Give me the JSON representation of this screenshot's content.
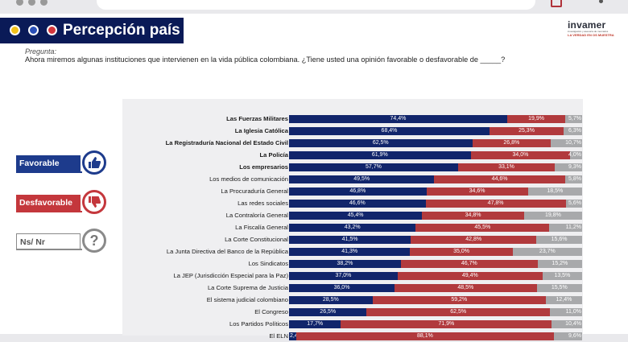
{
  "header": {
    "title": "Percepción país",
    "dot_colors": [
      "#f4c21a",
      "#2a4fb8",
      "#d3363d"
    ]
  },
  "logo": {
    "name": "invamer",
    "subtitle": "investigación y asesoría de mercados",
    "tagline": "LA VERDAD EN OS MUESTRA"
  },
  "question": {
    "label": "Pregunta:",
    "text": "Ahora miremos algunas instituciones que intervienen en la vida pública colombiana. ¿Tiene usted una opinión favorable o desfavorable de _____?"
  },
  "legend": [
    {
      "label": "Favorable",
      "icon": "thumbs-up-icon",
      "color": "#1d3b8c"
    },
    {
      "label": "Desfavorable",
      "icon": "thumbs-down-icon",
      "color": "#c4373c"
    },
    {
      "label": "Ns/ Nr",
      "icon": "question-icon",
      "color": "#8a8a8a"
    }
  ],
  "chart_data": {
    "type": "bar",
    "orientation": "horizontal",
    "stacked": true,
    "series_names": [
      "Favorable",
      "Desfavorable",
      "Ns/ Nr"
    ],
    "series_colors": [
      "#11256b",
      "#b13a3d",
      "#a8a9ab"
    ],
    "rows": [
      {
        "label": "Las Fuerzas Militares",
        "bold": true,
        "fav": "74,4%",
        "desf": "19,9%",
        "nsnr": "5,7%",
        "v": [
          74.4,
          19.9,
          5.7
        ]
      },
      {
        "label": "La Iglesia Católica",
        "bold": true,
        "fav": "68,4%",
        "desf": "25,3%",
        "nsnr": "6,3%",
        "v": [
          68.4,
          25.3,
          6.3
        ]
      },
      {
        "label": "La Registraduría Nacional del Estado Civil",
        "bold": true,
        "fav": "62,5%",
        "desf": "26,8%",
        "nsnr": "10,7%",
        "v": [
          62.5,
          26.8,
          10.7
        ]
      },
      {
        "label": "La Policía",
        "bold": true,
        "fav": "61,9%",
        "desf": "34,0%",
        "nsnr": "4,0%",
        "v": [
          61.9,
          34.0,
          4.0
        ]
      },
      {
        "label": "Los empresarios",
        "bold": true,
        "fav": "57,7%",
        "desf": "33,1%",
        "nsnr": "9,3%",
        "v": [
          57.7,
          33.1,
          9.3
        ]
      },
      {
        "label": "Los medios de comunicación",
        "bold": false,
        "fav": "49,5%",
        "desf": "44,6%",
        "nsnr": "5,8%",
        "v": [
          49.5,
          44.6,
          5.8
        ]
      },
      {
        "label": "La Procuraduría General",
        "bold": false,
        "fav": "46,8%",
        "desf": "34,6%",
        "nsnr": "18,5%",
        "v": [
          46.8,
          34.6,
          18.5
        ]
      },
      {
        "label": "Las redes sociales",
        "bold": false,
        "fav": "46,6%",
        "desf": "47,8%",
        "nsnr": "5,6%",
        "v": [
          46.6,
          47.8,
          5.6
        ]
      },
      {
        "label": "La Contraloría General",
        "bold": false,
        "fav": "45,4%",
        "desf": "34,8%",
        "nsnr": "19,8%",
        "v": [
          45.4,
          34.8,
          19.8
        ]
      },
      {
        "label": "La Fiscalía General",
        "bold": false,
        "fav": "43,2%",
        "desf": "45,5%",
        "nsnr": "11,2%",
        "v": [
          43.2,
          45.5,
          11.2
        ]
      },
      {
        "label": "La Corte Constitucional",
        "bold": false,
        "fav": "41,5%",
        "desf": "42,8%",
        "nsnr": "15,6%",
        "v": [
          41.5,
          42.8,
          15.6
        ]
      },
      {
        "label": "La Junta Directiva del Banco de la República",
        "bold": false,
        "fav": "41,3%",
        "desf": "35,0%",
        "nsnr": "23,7%",
        "v": [
          41.3,
          35.0,
          23.7
        ]
      },
      {
        "label": "Los Sindicatos",
        "bold": false,
        "fav": "38,2%",
        "desf": "46,7%",
        "nsnr": "15,2%",
        "v": [
          38.2,
          46.7,
          15.2
        ]
      },
      {
        "label": "La JEP (Jurisdicción Especial para la Paz)",
        "bold": false,
        "fav": "37,0%",
        "desf": "49,4%",
        "nsnr": "13,5%",
        "v": [
          37.0,
          49.4,
          13.5
        ]
      },
      {
        "label": "La Corte Suprema de Justicia",
        "bold": false,
        "fav": "36,0%",
        "desf": "48,5%",
        "nsnr": "15,5%",
        "v": [
          36.0,
          48.5,
          15.5
        ]
      },
      {
        "label": "El sistema judicial colombiano",
        "bold": false,
        "fav": "28,5%",
        "desf": "59,2%",
        "nsnr": "12,4%",
        "v": [
          28.5,
          59.2,
          12.4
        ]
      },
      {
        "label": "El Congreso",
        "bold": false,
        "fav": "26,5%",
        "desf": "62,5%",
        "nsnr": "11,0%",
        "v": [
          26.5,
          62.5,
          11.0
        ]
      },
      {
        "label": "Los Partidos Políticos",
        "bold": false,
        "fav": "17,7%",
        "desf": "71,9%",
        "nsnr": "10,4%",
        "v": [
          17.7,
          71.9,
          10.4
        ]
      },
      {
        "label": "El ELN",
        "bold": false,
        "fav": "2,4%",
        "desf": "88,1%",
        "nsnr": "9,6%",
        "v": [
          2.4,
          88.1,
          9.6
        ]
      }
    ]
  }
}
